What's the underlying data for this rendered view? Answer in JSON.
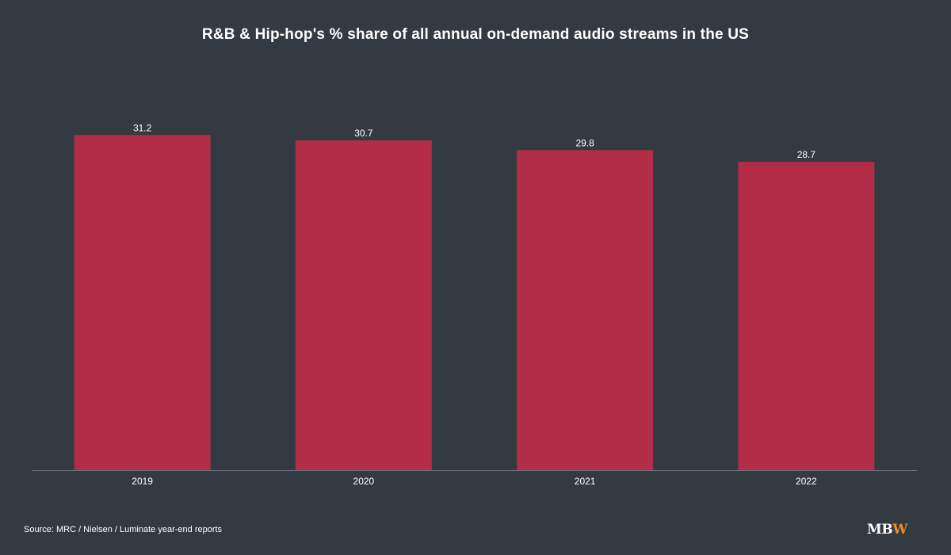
{
  "chart_data": {
    "type": "bar",
    "title": "R&B & Hip-hop's % share of all annual on-demand audio streams in the US",
    "categories": [
      "2019",
      "2020",
      "2021",
      "2022"
    ],
    "values": [
      31.2,
      30.7,
      29.8,
      28.7
    ],
    "ylim": [
      0,
      34.1
    ],
    "xlabel": "",
    "ylabel": "",
    "grid": false,
    "legend": "none",
    "bar_color": "#b22d47",
    "background_color": "#343a42"
  },
  "footer": {
    "source": "Source: MRC / Nielsen / Luminate year-end reports"
  },
  "logo": {
    "text": "MBW",
    "part_white": "MB",
    "part_accent": "W",
    "accent_color": "#f08a24"
  }
}
